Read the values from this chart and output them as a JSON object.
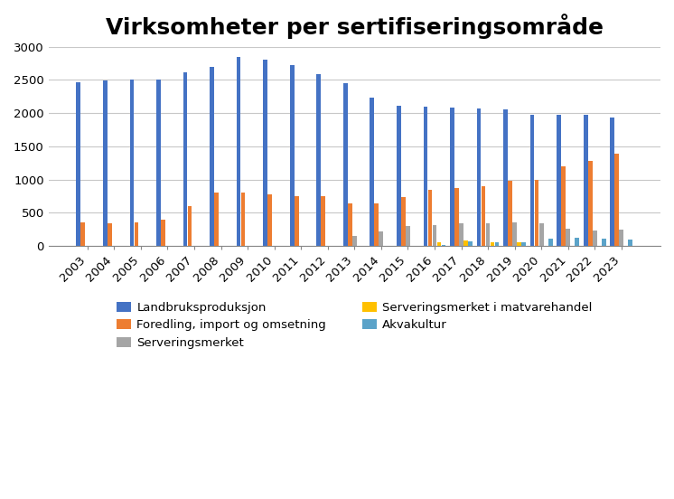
{
  "title": "Virksomheter per sertifiseringsområde",
  "years": [
    2003,
    2004,
    2005,
    2006,
    2007,
    2008,
    2009,
    2010,
    2011,
    2012,
    2013,
    2014,
    2015,
    2016,
    2017,
    2018,
    2019,
    2020,
    2021,
    2022,
    2023
  ],
  "series": {
    "Landbruksproduksjon": [
      2470,
      2490,
      2500,
      2500,
      2610,
      2700,
      2850,
      2800,
      2720,
      2590,
      2450,
      2230,
      2110,
      2100,
      2090,
      2070,
      2060,
      1980,
      1970,
      1975,
      1940
    ],
    "Foredling, import og omsetning": [
      360,
      340,
      355,
      400,
      600,
      800,
      800,
      780,
      750,
      750,
      640,
      645,
      730,
      850,
      870,
      900,
      985,
      990,
      1205,
      1275,
      1395
    ],
    "Serveringsmerket": [
      0,
      0,
      0,
      0,
      0,
      0,
      0,
      0,
      0,
      0,
      145,
      215,
      295,
      320,
      335,
      345,
      350,
      340,
      255,
      230,
      245
    ],
    "Serveringsmerket i matvarehandel": [
      0,
      0,
      0,
      0,
      0,
      0,
      0,
      0,
      0,
      0,
      0,
      0,
      0,
      55,
      80,
      55,
      55,
      0,
      0,
      0,
      0
    ],
    "Akvakultur": [
      0,
      0,
      0,
      0,
      0,
      0,
      0,
      0,
      0,
      0,
      0,
      0,
      0,
      10,
      75,
      60,
      60,
      110,
      125,
      110,
      100
    ]
  },
  "colors": {
    "Landbruksproduksjon": "#4472C4",
    "Foredling, import og omsetning": "#ED7D31",
    "Serveringsmerket": "#A5A5A5",
    "Serveringsmerket i matvarehandel": "#FFC000",
    "Akvakultur": "#5BA3C9"
  },
  "ylim": [
    0,
    3000
  ],
  "yticks": [
    0,
    500,
    1000,
    1500,
    2000,
    2500,
    3000
  ],
  "background_color": "#FFFFFF",
  "title_fontsize": 18,
  "legend_fontsize": 9.5,
  "tick_fontsize": 9.5
}
